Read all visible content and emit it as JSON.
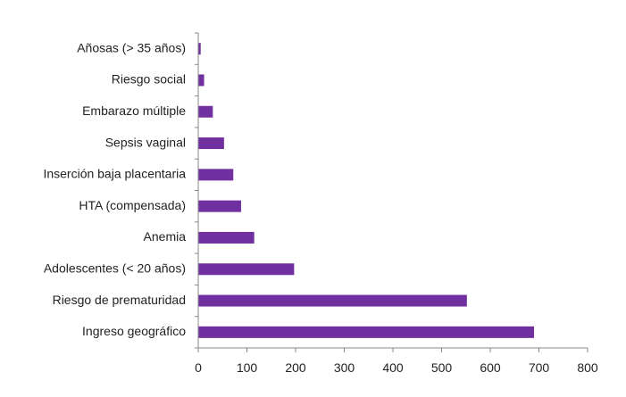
{
  "colors": {
    "bar": "#7030A0",
    "axis": "#888888",
    "text": "#222222",
    "background": "#ffffff"
  },
  "chart_data": {
    "type": "bar",
    "orientation": "horizontal",
    "title": "",
    "xlabel": "",
    "ylabel": "",
    "categories": [
      "Ingreso geográfico",
      "Riesgo de prematuridad",
      "Adolescentes (< 20 años)",
      "Anemia",
      "HTA (compensada)",
      "Inserción baja placentaria",
      "Sepsis vaginal",
      "Embarazo múltiple",
      "Riesgo social",
      "Añosas (> 35 años)"
    ],
    "values": [
      690,
      552,
      197,
      115,
      88,
      72,
      53,
      30,
      12,
      5
    ],
    "xlim": [
      0,
      800
    ],
    "xticks": [
      0,
      100,
      200,
      300,
      400,
      500,
      600,
      700,
      800
    ],
    "grid": false,
    "legend": "none"
  }
}
